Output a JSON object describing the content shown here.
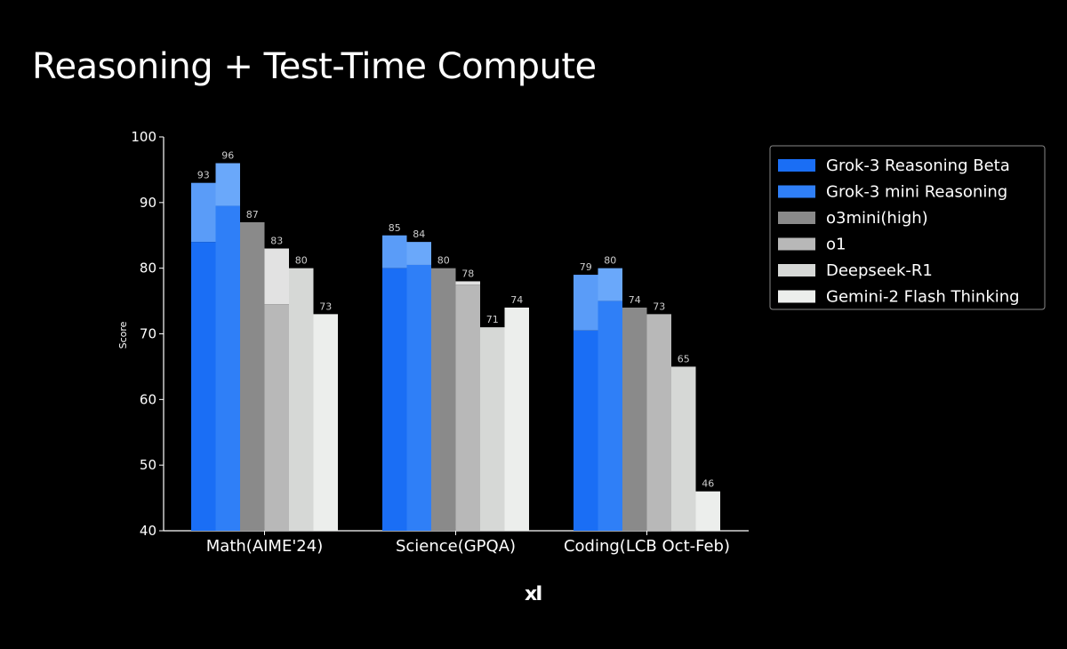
{
  "slide": {
    "title": "Reasoning + Test-Time Compute",
    "logo": "xI"
  },
  "chart_data": {
    "type": "bar",
    "title": "",
    "xlabel": "",
    "ylabel": "Score",
    "ylim": [
      40,
      100
    ],
    "yticks": [
      40,
      50,
      60,
      70,
      80,
      90,
      100
    ],
    "grid": false,
    "legend_position": "top-right",
    "categories": [
      "Math(AIME'24)",
      "Science(GPQA)",
      "Coding(LCB Oct-Feb)"
    ],
    "series": [
      {
        "name": "Grok-3 Reasoning Beta",
        "color": "#1a6ef5",
        "highlight_color": "#5a9cf8",
        "values": [
          93,
          85,
          79
        ],
        "base_values": [
          84,
          80,
          70.5
        ]
      },
      {
        "name": "Grok-3 mini Reasoning",
        "color": "#2f7ff7",
        "highlight_color": "#6aa8fa",
        "values": [
          96,
          84,
          80
        ],
        "base_values": [
          89.5,
          80.5,
          75
        ]
      },
      {
        "name": "o3mini(high)",
        "color": "#8a8a8a",
        "values": [
          87,
          80,
          74
        ]
      },
      {
        "name": "o1",
        "color": "#b8b8b8",
        "highlight_color": "#e2e2e2",
        "values": [
          83,
          78,
          73
        ],
        "base_values": [
          74.5,
          77.5,
          null
        ]
      },
      {
        "name": "Deepseek-R1",
        "color": "#d6d8d6",
        "values": [
          80,
          71,
          65
        ]
      },
      {
        "name": "Gemini-2 Flash Thinking",
        "color": "#eceeec",
        "values": [
          73,
          74,
          46
        ]
      }
    ]
  }
}
